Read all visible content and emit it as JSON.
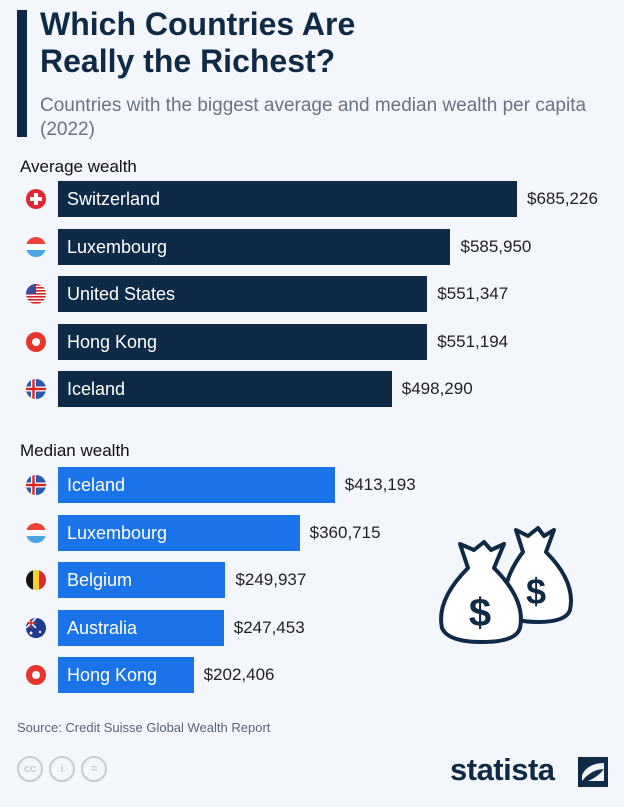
{
  "title_line1": "Which Countries Are",
  "title_line2": "Really the Richest?",
  "subtitle": "Countries with the biggest average and median wealth per capita (2022)",
  "source": "Source: Credit Suisse Global Wealth Report",
  "brand": "statista",
  "license_icons": [
    "cc",
    "by",
    "nd"
  ],
  "colors": {
    "average": "#0f2a46",
    "median": "#1a73e8"
  },
  "chart_data": {
    "type": "bar",
    "title": "Which Countries Are Really the Richest?",
    "unit": "USD per capita",
    "groups": [
      {
        "name": "Average wealth",
        "color": "#0f2a46",
        "items": [
          {
            "country": "Switzerland",
            "value": 685226,
            "label": "$685,226",
            "flag": "ch"
          },
          {
            "country": "Luxembourg",
            "value": 585950,
            "label": "$585,950",
            "flag": "lu"
          },
          {
            "country": "United States",
            "value": 551347,
            "label": "$551,347",
            "flag": "us"
          },
          {
            "country": "Hong Kong",
            "value": 551194,
            "label": "$551,194",
            "flag": "hk"
          },
          {
            "country": "Iceland",
            "value": 498290,
            "label": "$498,290",
            "flag": "is"
          }
        ]
      },
      {
        "name": "Median wealth",
        "color": "#1a73e8",
        "items": [
          {
            "country": "Iceland",
            "value": 413193,
            "label": "$413,193",
            "flag": "is"
          },
          {
            "country": "Luxembourg",
            "value": 360715,
            "label": "$360,715",
            "flag": "lu"
          },
          {
            "country": "Belgium",
            "value": 249937,
            "label": "$249,937",
            "flag": "be"
          },
          {
            "country": "Australia",
            "value": 247453,
            "label": "$247,453",
            "flag": "au"
          },
          {
            "country": "Hong Kong",
            "value": 202406,
            "label": "$202,406",
            "flag": "hk"
          }
        ]
      }
    ]
  }
}
